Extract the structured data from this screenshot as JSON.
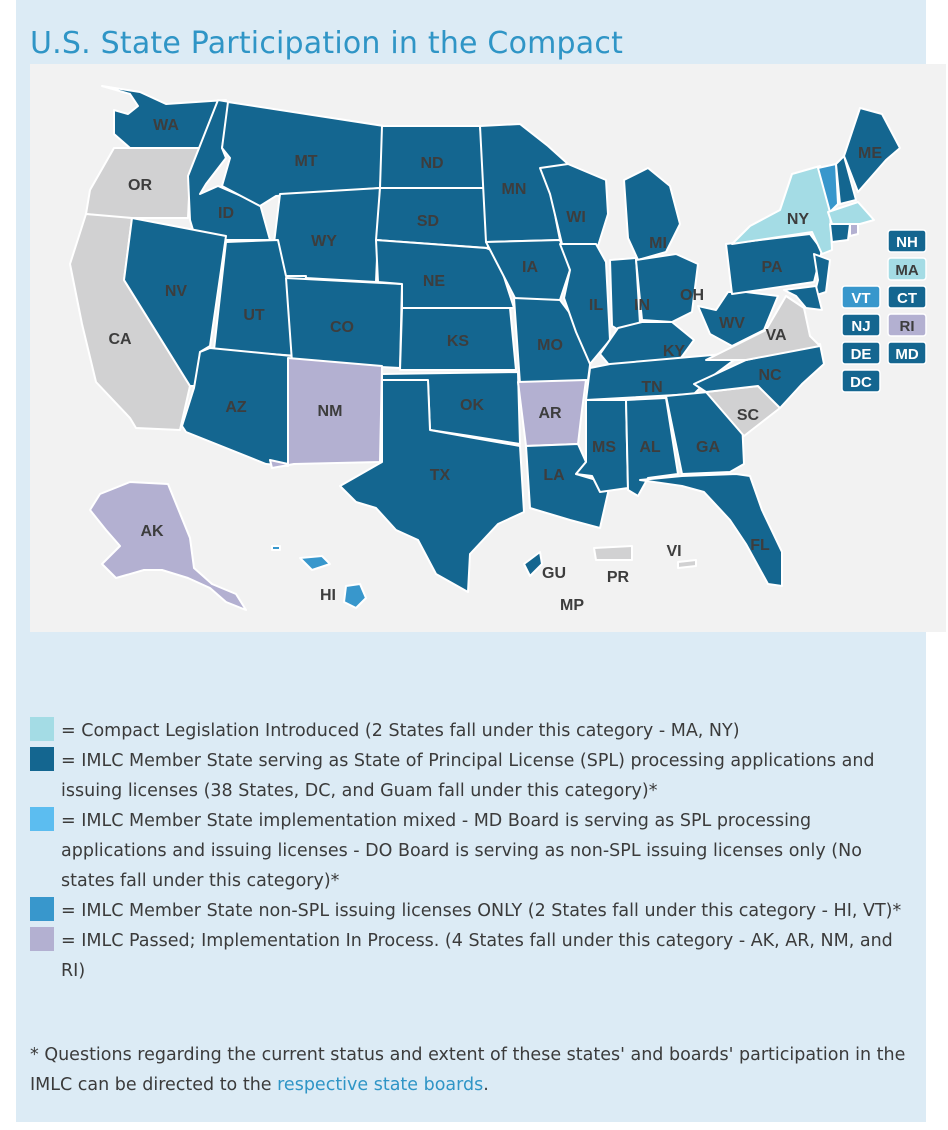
{
  "title": "U.S. State Participation in the Compact",
  "colors": {
    "introduced": "#a4dce5",
    "member_spl": "#146690",
    "mixed": "#5cbdf0",
    "non_spl": "#3897cc",
    "passed": "#b3b0d1",
    "none": "#d1d1d2"
  },
  "map": {
    "labels": {
      "WA": "WA",
      "OR": "OR",
      "CA": "CA",
      "ID": "ID",
      "NV": "NV",
      "MT": "MT",
      "WY": "WY",
      "UT": "UT",
      "AZ": "AZ",
      "CO": "CO",
      "NM": "NM",
      "ND": "ND",
      "SD": "SD",
      "NE": "NE",
      "KS": "KS",
      "OK": "OK",
      "TX": "TX",
      "MN": "MN",
      "IA": "IA",
      "MO": "MO",
      "AR": "AR",
      "LA": "LA",
      "WI": "WI",
      "IL": "IL",
      "MI": "MI",
      "IN": "IN",
      "OH": "OH",
      "KY": "KY",
      "TN": "TN",
      "MS": "MS",
      "AL": "AL",
      "GA": "GA",
      "FL": "FL",
      "SC": "SC",
      "NC": "NC",
      "VA": "VA",
      "WV": "WV",
      "PA": "PA",
      "NY": "NY",
      "ME": "ME",
      "AK": "AK",
      "HI": "HI",
      "GU": "GU",
      "PR": "PR",
      "VI": "VI",
      "MP": "MP"
    },
    "boxes": {
      "NH": "NH",
      "MA": "MA",
      "VT": "VT",
      "CT": "CT",
      "NJ": "NJ",
      "RI": "RI",
      "DE": "DE",
      "MD": "MD",
      "DC": "DC"
    }
  },
  "legend": [
    {
      "color": "#a4dce5",
      "text": "= Compact Legislation Introduced (2 States fall under this category - MA, NY)"
    },
    {
      "color": "#146690",
      "text": "= IMLC Member State serving as State of Principal License (SPL) processing applications and issuing licenses (38 States, DC, and Guam fall under this category)*"
    },
    {
      "color": "#5cbdf0",
      "text": "= IMLC Member State implementation mixed - MD Board is serving as SPL processing applications and issuing licenses - DO Board is serving as non-SPL issuing licenses only (No states fall under this category)*"
    },
    {
      "color": "#3897cc",
      "text": "= IMLC Member State non-SPL issuing licenses ONLY (2 States fall under this category - HI, VT)*"
    },
    {
      "color": "#b3b0d1",
      "text": "= IMLC Passed; Implementation In Process. (4 States fall under this category - AK, AR, NM, and RI)"
    }
  ],
  "note": {
    "prefix": "* Questions regarding the current status and extent of these states' and boards' participation in the IMLC can be directed to the ",
    "link_text": "respective state boards",
    "suffix": "."
  }
}
